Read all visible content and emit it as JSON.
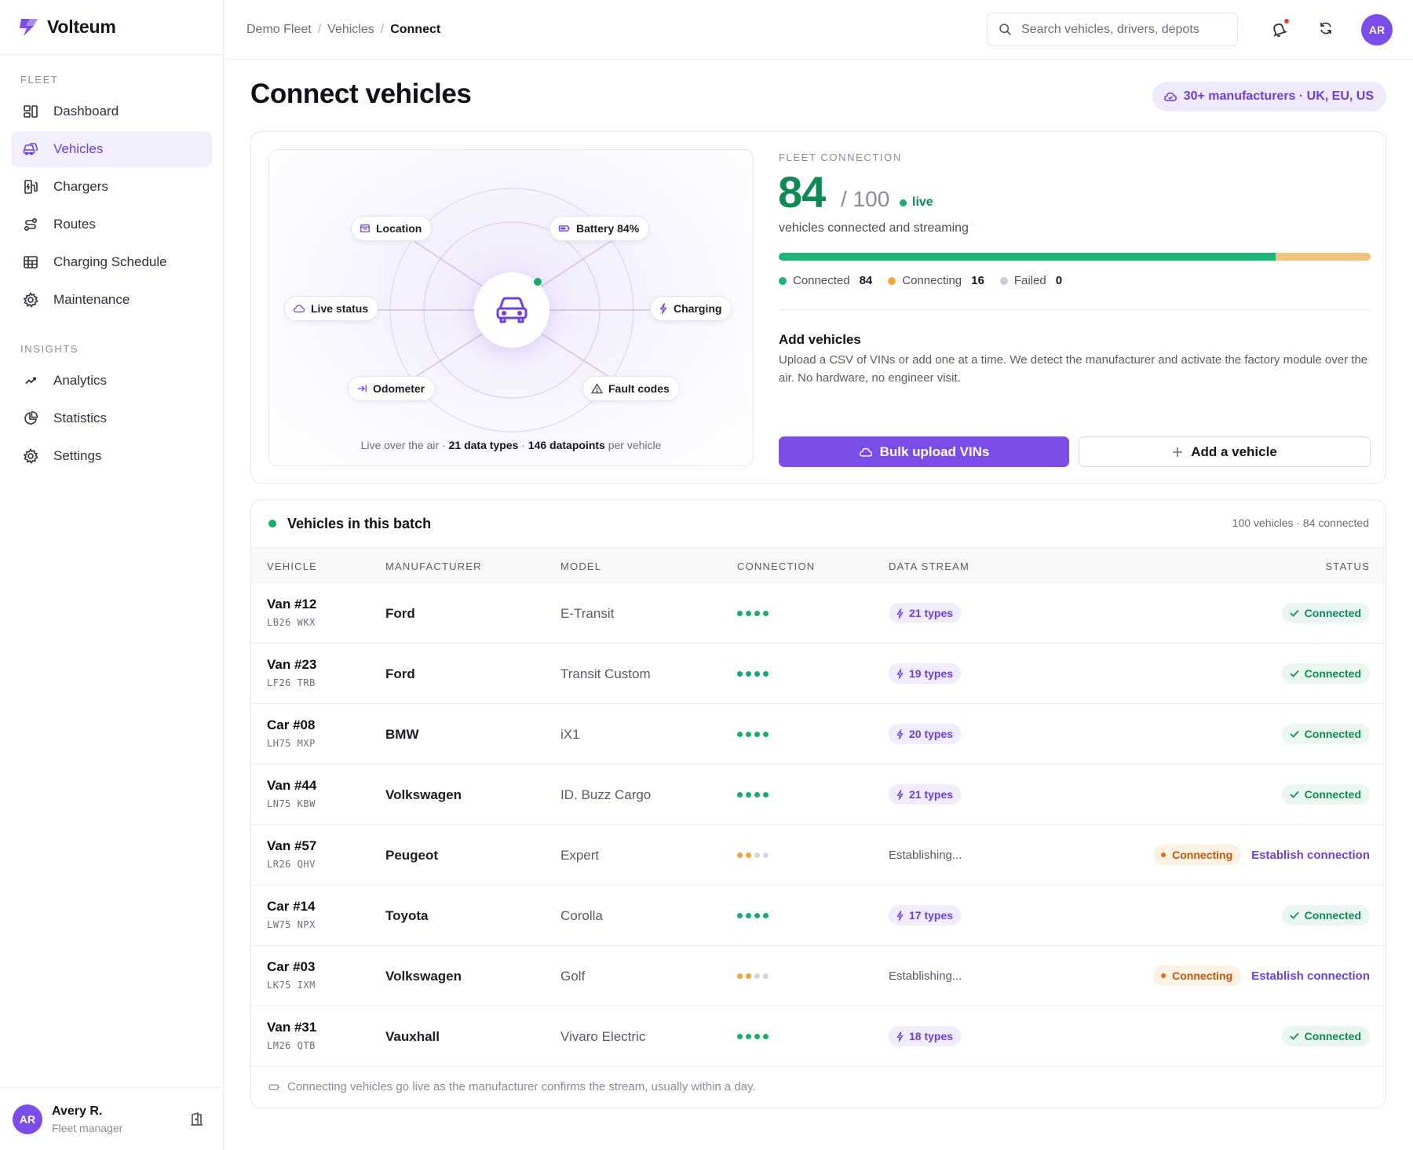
{
  "app": {
    "name": "Volteum"
  },
  "sidebar": {
    "sections": [
      {
        "heading": "FLEET",
        "items": [
          {
            "label": "Dashboard",
            "icon": "dashboard-icon"
          },
          {
            "label": "Vehicles",
            "icon": "vehicles-icon",
            "active": true
          },
          {
            "label": "Chargers",
            "icon": "charger-icon"
          },
          {
            "label": "Routes",
            "icon": "route-icon"
          },
          {
            "label": "Charging Schedule",
            "icon": "schedule-icon"
          },
          {
            "label": "Maintenance",
            "icon": "maintenance-gear-icon"
          }
        ]
      },
      {
        "heading": "INSIGHTS",
        "items": [
          {
            "label": "Analytics",
            "icon": "analytics-icon"
          },
          {
            "label": "Statistics",
            "icon": "statistics-icon"
          },
          {
            "label": "Settings",
            "icon": "settings-icon"
          }
        ]
      }
    ],
    "user": {
      "initials": "AR",
      "name": "Avery R.",
      "role": "Fleet manager"
    }
  },
  "topbar": {
    "breadcrumbs": [
      "Demo Fleet",
      "Vehicles",
      "Connect"
    ],
    "search_placeholder": "Search vehicles, drivers, depots",
    "avatar_initials": "AR"
  },
  "page": {
    "title": "Connect vehicles",
    "manufacturers_pill": "30+ manufacturers · UK, EU, US"
  },
  "diagram": {
    "chips": [
      "Location",
      "Battery 84%",
      "Live status",
      "Charging",
      "Odometer",
      "Fault codes"
    ],
    "caption_pre": "Live over the air · ",
    "caption_types": "21 data types",
    "caption_mid": " · ",
    "caption_points": "146 datapoints",
    "caption_post": " per vehicle"
  },
  "fleet_connection": {
    "label": "FLEET CONNECTION",
    "connected_count": "84",
    "total": "/ 100",
    "live_label": "live",
    "subtitle": "vehicles connected and streaming",
    "progress": {
      "connected": 84,
      "connecting": 16,
      "failed": 0,
      "total": 100
    },
    "legend": [
      {
        "label": "Connected",
        "value": "84",
        "color": "#1cb574"
      },
      {
        "label": "Connecting",
        "value": "16",
        "color": "#f0a53a"
      },
      {
        "label": "Failed",
        "value": "0",
        "color": "#c9c9d3"
      }
    ]
  },
  "add_vehicles": {
    "title": "Add vehicles",
    "description": "Upload a CSV of VINs or add one at a time. We detect the manufacturer and activate the factory module over the air. No hardware, no engineer visit.",
    "bulk_button": "Bulk upload VINs",
    "add_button": "Add a vehicle"
  },
  "batch": {
    "title": "Vehicles in this batch",
    "meta": "100 vehicles · 84 connected",
    "columns": [
      "VEHICLE",
      "MANUFACTURER",
      "MODEL",
      "CONNECTION",
      "DATA STREAM",
      "STATUS"
    ],
    "rows": [
      {
        "name": "Van #12",
        "plate": "LB26 WKX",
        "manufacturer": "Ford",
        "model": "E-Transit",
        "signal": 4,
        "stream": "21 types",
        "status": "Connected"
      },
      {
        "name": "Van #23",
        "plate": "LF26 TRB",
        "manufacturer": "Ford",
        "model": "Transit Custom",
        "signal": 4,
        "stream": "19 types",
        "status": "Connected"
      },
      {
        "name": "Car #08",
        "plate": "LH75 MXP",
        "manufacturer": "BMW",
        "model": "iX1",
        "signal": 4,
        "stream": "20 types",
        "status": "Connected"
      },
      {
        "name": "Van #44",
        "plate": "LN75 KBW",
        "manufacturer": "Volkswagen",
        "model": "ID. Buzz Cargo",
        "signal": 4,
        "stream": "21 types",
        "status": "Connected"
      },
      {
        "name": "Van #57",
        "plate": "LR26 QHV",
        "manufacturer": "Peugeot",
        "model": "Expert",
        "signal": 2,
        "stream": "Establishing...",
        "status": "Connecting",
        "action": "Establish connection"
      },
      {
        "name": "Car #14",
        "plate": "LW75 NPX",
        "manufacturer": "Toyota",
        "model": "Corolla",
        "signal": 4,
        "stream": "17 types",
        "status": "Connected"
      },
      {
        "name": "Car #03",
        "plate": "LK75 IXM",
        "manufacturer": "Volkswagen",
        "model": "Golf",
        "signal": 2,
        "stream": "Establishing...",
        "status": "Connecting",
        "action": "Establish connection"
      },
      {
        "name": "Van #31",
        "plate": "LM26 QTB",
        "manufacturer": "Vauxhall",
        "model": "Vivaro Electric",
        "signal": 4,
        "stream": "18 types",
        "status": "Connected"
      }
    ],
    "footer": "Connecting vehicles go live as the manufacturer confirms the stream, usually within a day."
  },
  "colors": {
    "accent": "#7b4de8",
    "success": "#1aab6d",
    "warning": "#e56a12",
    "pending": "#f0a53a"
  }
}
